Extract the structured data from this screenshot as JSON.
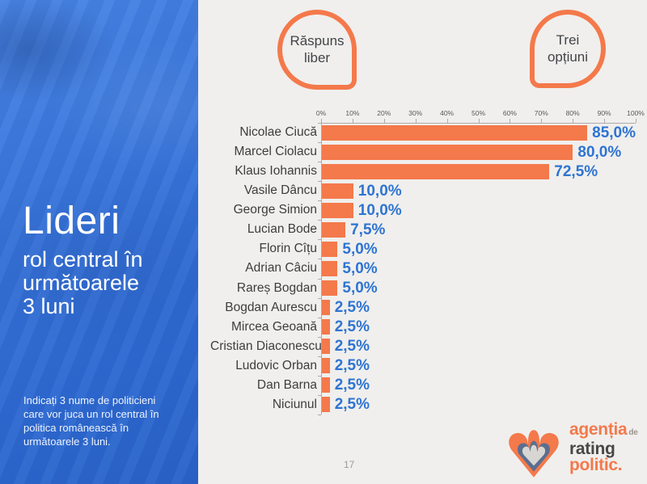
{
  "colors": {
    "accent_orange": "#f4794b",
    "value_blue": "#2e74d3",
    "sidebar_blue": "#3a77dc",
    "background": "#f0efed",
    "axis_gray": "#ababab",
    "logo_slate": "#5b6e8f",
    "logo_gray": "#d8d6d2"
  },
  "sidebar": {
    "title": "Lideri",
    "subtitle_lines": [
      "rol central în",
      "următoarele",
      "3 luni"
    ],
    "footnote": "Indicați 3 nume de politicieni care vor juca un rol central în politica românească în următoarele 3 luni."
  },
  "badges": [
    {
      "label": "Răspuns liber"
    },
    {
      "label": "Trei opțiuni"
    }
  ],
  "chart_data": {
    "type": "bar",
    "orientation": "horizontal",
    "title": "",
    "xlabel": "",
    "ylabel": "",
    "xlim": [
      0,
      100
    ],
    "grid": false,
    "legend": false,
    "x_ticks": [
      "0%",
      "10%",
      "20%",
      "30%",
      "40%",
      "50%",
      "60%",
      "70%",
      "80%",
      "90%",
      "100%"
    ],
    "categories": [
      "Nicolae Ciucă",
      "Marcel Ciolacu",
      "Klaus Iohannis",
      "Vasile Dâncu",
      "George Simion",
      "Lucian Bode",
      "Florin Cîțu",
      "Adrian Câciu",
      "Rareș Bogdan",
      "Bogdan Aurescu",
      "Mircea Geoană",
      "Cristian Diaconescu",
      "Ludovic Orban",
      "Dan Barna",
      "Niciunul"
    ],
    "values": [
      85,
      80,
      72.5,
      10,
      10,
      7.5,
      5,
      5,
      5,
      2.5,
      2.5,
      2.5,
      2.5,
      2.5,
      2.5
    ],
    "value_labels": [
      "85,0%",
      "80,0%",
      "72,5%",
      "10,0%",
      "10,0%",
      "7,5%",
      "5,0%",
      "5,0%",
      "5,0%",
      "2,5%",
      "2,5%",
      "2,5%",
      "2,5%",
      "2,5%",
      "2,5%"
    ]
  },
  "logo": {
    "line1": "agenția",
    "line1_suffix": "de",
    "line2": "rating",
    "line3": "politic."
  },
  "slide": {
    "page_number": "17"
  }
}
